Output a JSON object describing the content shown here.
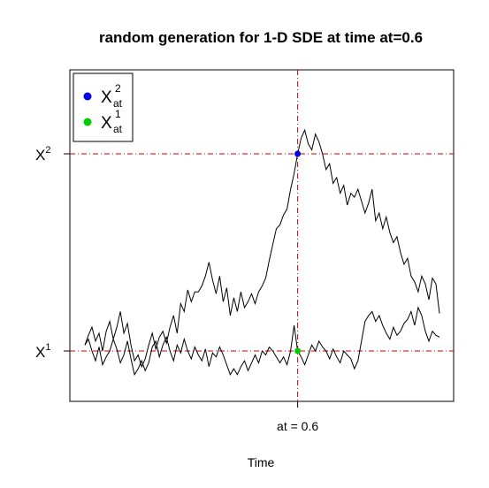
{
  "chart_data": {
    "type": "line",
    "title": "random generation for 1-D SDE at time at=0.6",
    "xlabel": "Time",
    "ylabel": "",
    "xlim": [
      0,
      1
    ],
    "ylim": [
      -0.15,
      1.28
    ],
    "x_tick": {
      "label": "at = 0.6",
      "value": 0.6
    },
    "y_ticks": [
      {
        "label": "X",
        "sup": "2",
        "value": 1.0
      },
      {
        "label": "X",
        "sup": "1",
        "value": 0.0
      }
    ],
    "reference_lines": {
      "vertical_at": 0.6,
      "horizontal_at": [
        1.0,
        0.0
      ],
      "color": "#cc0000",
      "style": "dash-dot"
    },
    "legend": {
      "placement": "top-left",
      "entries": [
        {
          "label": "X",
          "sub": "at",
          "sup": "2",
          "color": "#0000ee"
        },
        {
          "label": "X",
          "sub": "at",
          "sup": "1",
          "color": "#00cc00"
        }
      ]
    },
    "points": [
      {
        "series": "X2_at",
        "x": 0.6,
        "y": 1.0,
        "color": "#0000ee"
      },
      {
        "series": "X1_at",
        "x": 0.6,
        "y": 0.0,
        "color": "#00cc00"
      }
    ],
    "x": [
      0.0,
      0.01,
      0.02,
      0.03,
      0.04,
      0.05,
      0.06,
      0.07,
      0.08,
      0.09,
      0.1,
      0.11,
      0.12,
      0.13,
      0.14,
      0.15,
      0.16,
      0.17,
      0.18,
      0.19,
      0.2,
      0.21,
      0.22,
      0.23,
      0.24,
      0.25,
      0.26,
      0.27,
      0.28,
      0.29,
      0.3,
      0.31,
      0.32,
      0.33,
      0.34,
      0.35,
      0.36,
      0.37,
      0.38,
      0.39,
      0.4,
      0.41,
      0.42,
      0.43,
      0.44,
      0.45,
      0.46,
      0.47,
      0.48,
      0.49,
      0.5,
      0.51,
      0.52,
      0.53,
      0.54,
      0.55,
      0.56,
      0.57,
      0.58,
      0.59,
      0.6,
      0.61,
      0.62,
      0.63,
      0.64,
      0.65,
      0.66,
      0.67,
      0.68,
      0.69,
      0.7,
      0.71,
      0.72,
      0.73,
      0.74,
      0.75,
      0.76,
      0.77,
      0.78,
      0.79,
      0.8,
      0.81,
      0.82,
      0.83,
      0.84,
      0.85,
      0.86,
      0.87,
      0.88,
      0.89,
      0.9,
      0.91,
      0.92,
      0.93,
      0.94,
      0.95,
      0.96,
      0.97,
      0.98,
      0.99,
      1.0
    ],
    "series": [
      {
        "values": [
          0.03,
          0.08,
          0.12,
          0.05,
          0.09,
          0.0,
          0.1,
          0.15,
          0.06,
          0.12,
          0.2,
          0.09,
          0.14,
          0.03,
          -0.05,
          -0.02,
          -0.08,
          -0.04,
          0.03,
          0.09,
          0.01,
          0.07,
          0.1,
          0.04,
          0.12,
          0.18,
          0.09,
          0.24,
          0.2,
          0.31,
          0.25,
          0.3,
          0.3,
          0.33,
          0.38,
          0.45,
          0.36,
          0.29,
          0.38,
          0.25,
          0.32,
          0.18,
          0.27,
          0.2,
          0.3,
          0.22,
          0.25,
          0.29,
          0.24,
          0.3,
          0.33,
          0.37,
          0.46,
          0.54,
          0.62,
          0.64,
          0.69,
          0.72,
          0.82,
          0.9,
          1.0,
          1.08,
          1.12,
          1.05,
          1.02,
          1.1,
          1.06,
          1.0,
          0.92,
          0.95,
          0.85,
          0.88,
          0.8,
          0.84,
          0.74,
          0.8,
          0.78,
          0.82,
          0.76,
          0.7,
          0.75,
          0.82,
          0.66,
          0.7,
          0.62,
          0.68,
          0.6,
          0.55,
          0.58,
          0.5,
          0.44,
          0.47,
          0.38,
          0.35,
          0.3,
          0.38,
          0.34,
          0.26,
          0.37,
          0.34,
          0.19
        ]
      },
      {
        "values": [
          0.03,
          0.06,
          0.0,
          -0.05,
          0.02,
          -0.07,
          -0.03,
          0.0,
          0.06,
          0.01,
          -0.06,
          -0.02,
          0.05,
          -0.04,
          -0.12,
          -0.09,
          -0.05,
          -0.1,
          -0.06,
          0.02,
          0.05,
          -0.03,
          0.03,
          0.07,
          0.0,
          -0.05,
          0.03,
          -0.01,
          0.06,
          0.0,
          -0.04,
          0.02,
          -0.02,
          -0.05,
          0.01,
          -0.08,
          -0.01,
          -0.03,
          0.02,
          -0.02,
          -0.07,
          -0.12,
          -0.09,
          -0.12,
          -0.08,
          -0.05,
          -0.1,
          -0.06,
          -0.02,
          -0.06,
          0.0,
          -0.02,
          0.02,
          0.0,
          -0.03,
          -0.06,
          -0.03,
          -0.07,
          0.0,
          0.13,
          0.0,
          -0.03,
          -0.07,
          -0.02,
          0.03,
          0.0,
          0.05,
          0.02,
          0.0,
          -0.04,
          0.01,
          -0.03,
          -0.06,
          0.0,
          -0.02,
          -0.04,
          -0.09,
          -0.05,
          0.05,
          0.15,
          0.18,
          0.2,
          0.15,
          0.18,
          0.13,
          0.09,
          0.06,
          0.12,
          0.08,
          0.1,
          0.14,
          0.16,
          0.2,
          0.13,
          0.22,
          0.18,
          0.1,
          0.05,
          0.1,
          0.08,
          0.07
        ]
      }
    ]
  }
}
